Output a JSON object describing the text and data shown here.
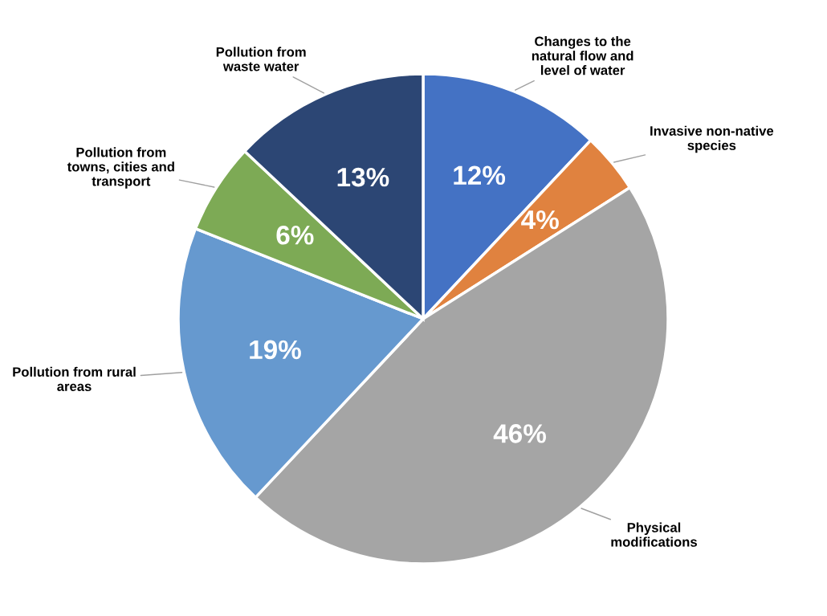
{
  "chart_data": {
    "type": "pie",
    "categories": [
      "Changes to the\nnatural flow and\nlevel of water",
      "Invasive non-native\nspecies",
      "Physical\nmodifications",
      "Pollution from rural\nareas",
      "Pollution from\ntowns, cities and\ntransport",
      "Pollution from\nwaste water"
    ],
    "values": [
      12,
      4,
      46,
      19,
      6,
      13
    ],
    "colors": [
      "#4472c4",
      "#e0823f",
      "#a5a5a5",
      "#6699cf",
      "#7daa55",
      "#2c4674"
    ],
    "value_labels": [
      "12%",
      "4%",
      "46%",
      "19%",
      "6%",
      "13%"
    ],
    "legend": false
  }
}
